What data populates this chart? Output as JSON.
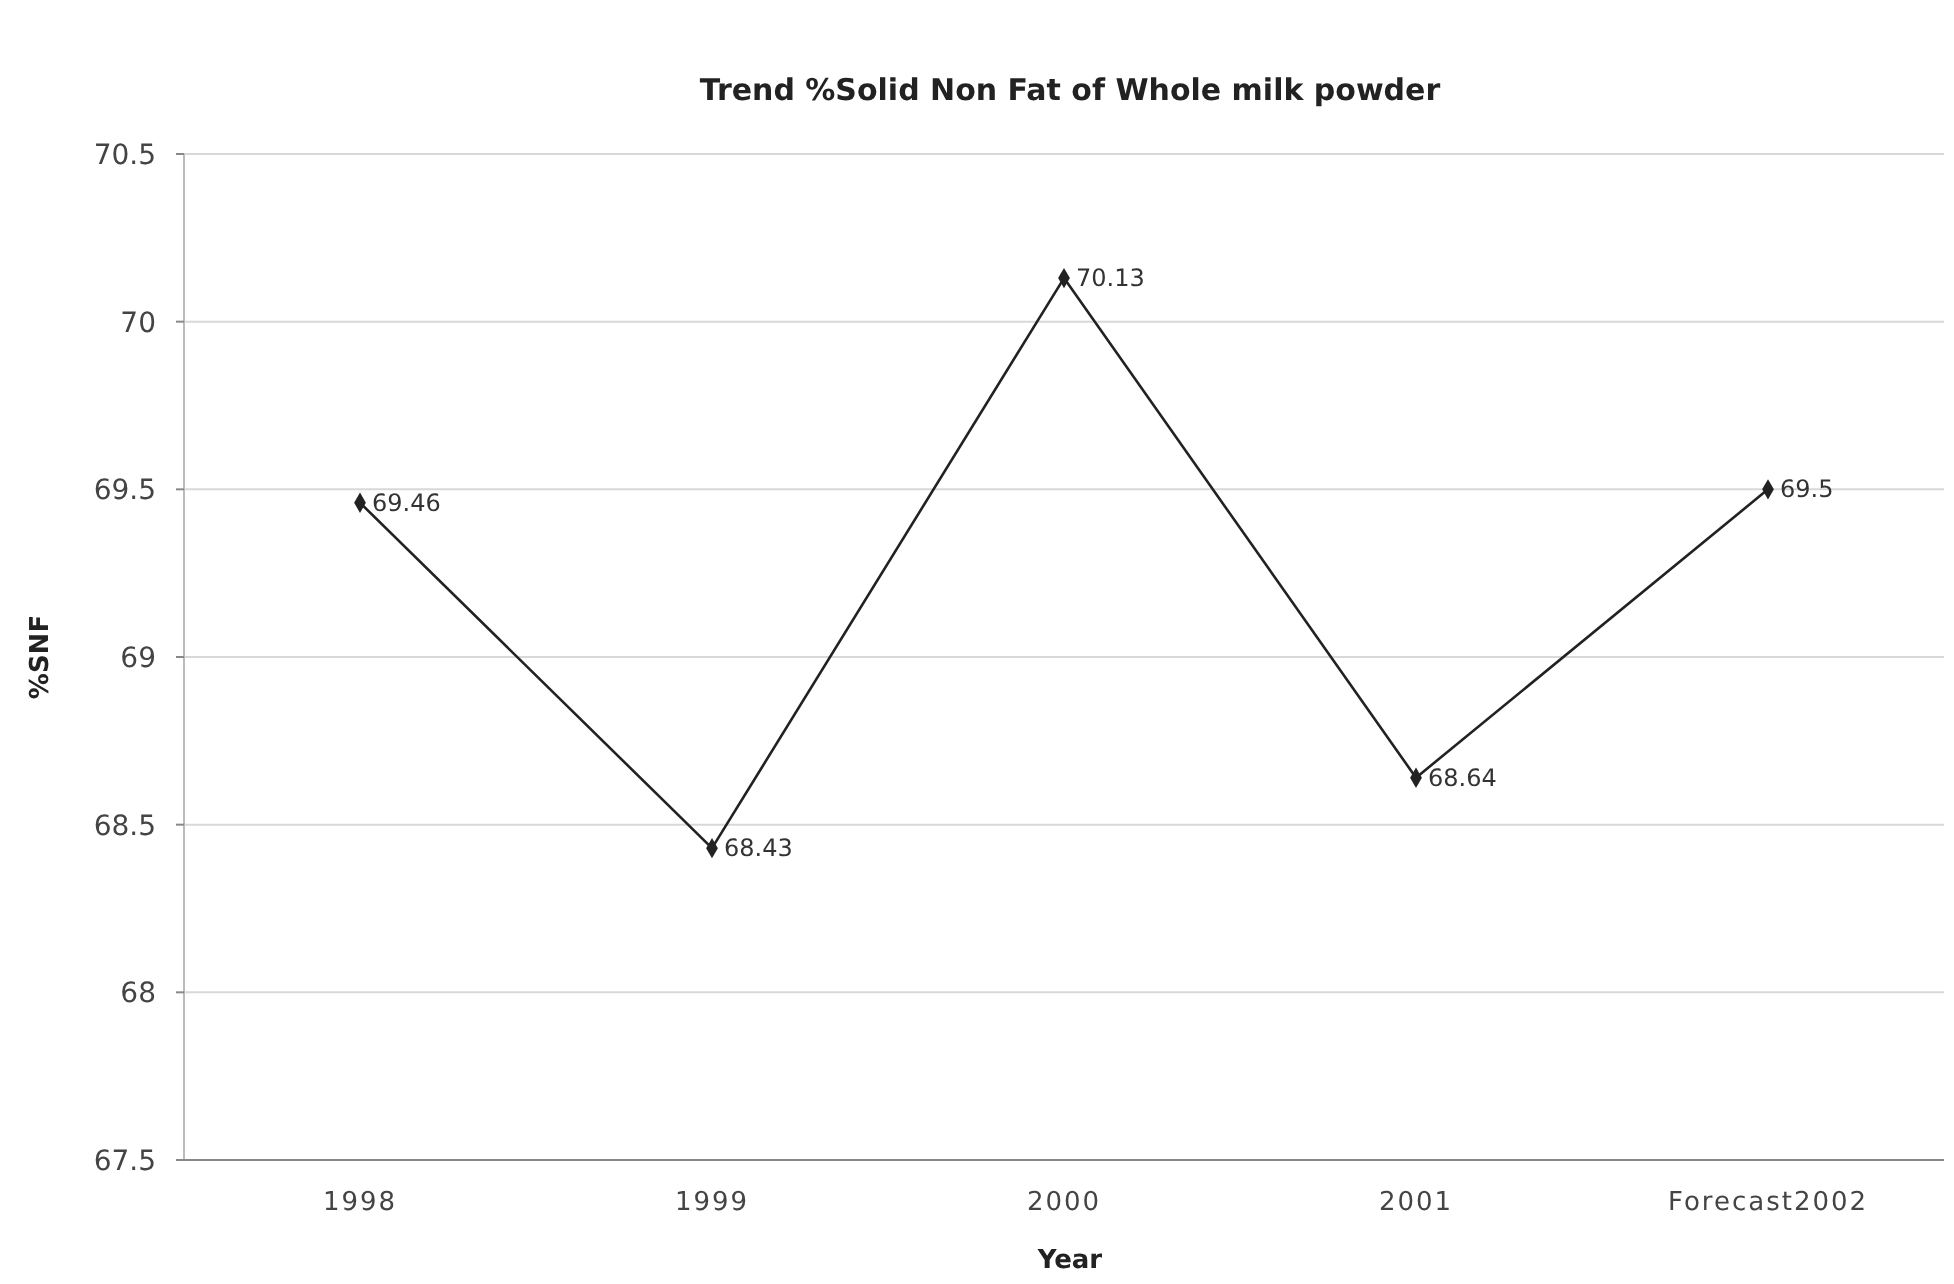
{
  "chart_data": {
    "type": "line",
    "title": "Trend %Solid Non Fat of Whole milk powder",
    "xlabel": "Year",
    "ylabel": "%SNF",
    "categories": [
      "1998",
      "1999",
      "2000",
      "2001",
      "Forecast2002"
    ],
    "series": [
      {
        "color": "#222222",
        "values": [
          69.46,
          68.43,
          70.13,
          68.64,
          69.5
        ]
      }
    ],
    "ylim": [
      67.5,
      70.5
    ],
    "yticks": [
      67.5,
      68,
      68.5,
      69,
      69.5,
      70,
      70.5
    ],
    "grid": "y",
    "marker": "diamond",
    "line_style": "solid",
    "data_labels": true
  }
}
